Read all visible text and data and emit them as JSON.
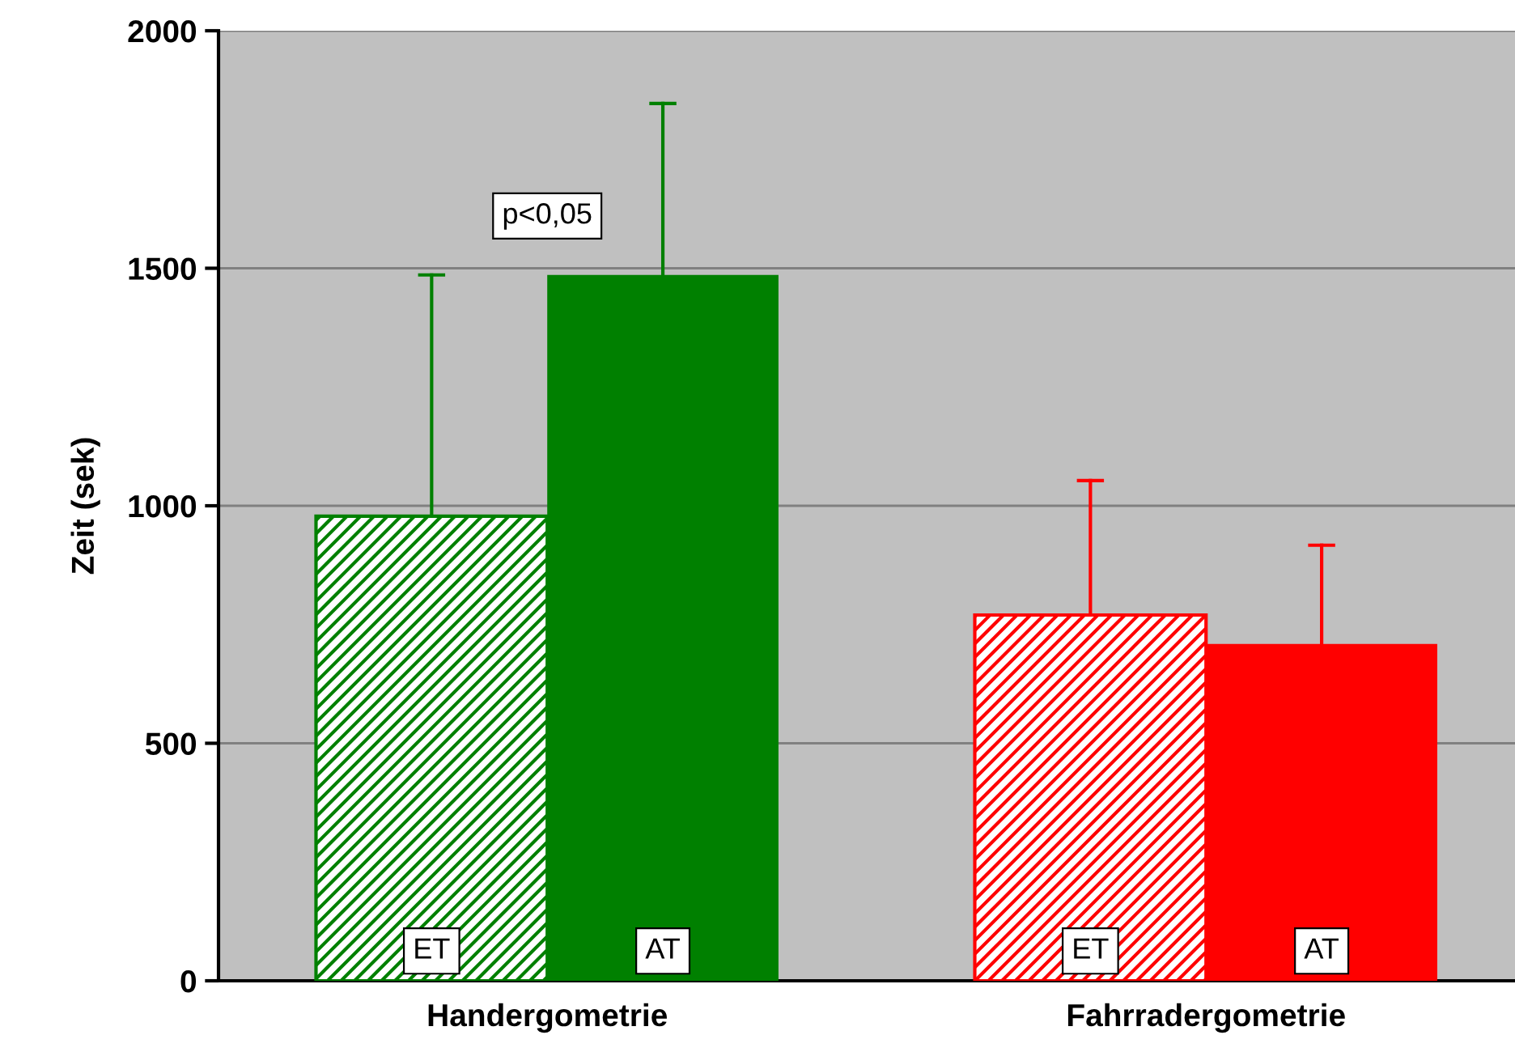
{
  "chart_data": {
    "type": "bar",
    "ylabel": "Zeit (sek)",
    "categories": [
      "Handergometrie",
      "Fahrradergometrie"
    ],
    "series": [
      {
        "name": "ET",
        "colors": [
          "#008000",
          "#ff0000"
        ],
        "values": [
          978,
          770
        ],
        "errors": [
          [
            978,
            1486
          ],
          [
            770,
            1053
          ]
        ]
      },
      {
        "name": "AT",
        "colors": [
          "#008000",
          "#ff0000"
        ],
        "values": [
          1486,
          709
        ],
        "errors": [
          [
            1486,
            1847
          ],
          [
            709,
            917
          ]
        ]
      }
    ],
    "ylim": [
      0,
      2000
    ],
    "yticks": [
      0,
      500,
      1000,
      1500,
      2000
    ],
    "grid": "y",
    "legend": false,
    "annotations": [
      "p<0,05"
    ]
  }
}
